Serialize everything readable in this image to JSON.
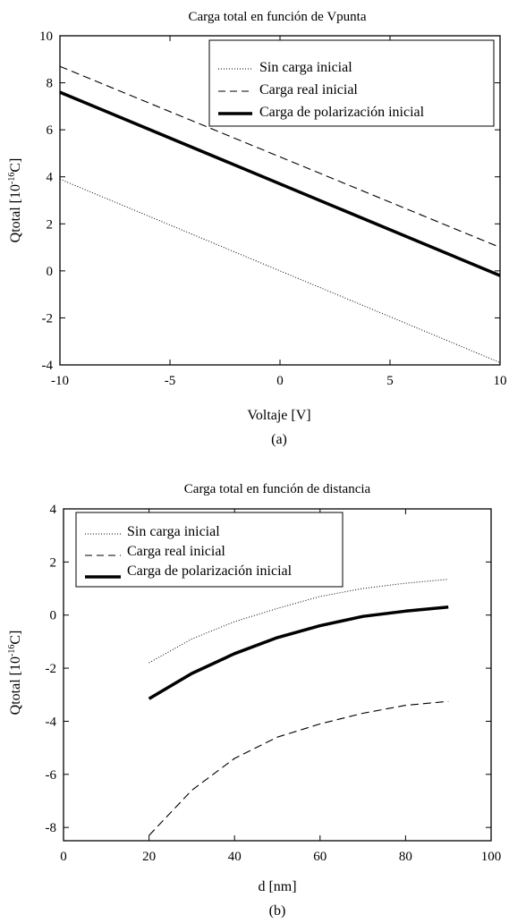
{
  "chart_data": [
    {
      "type": "line",
      "panel_label": "(a)",
      "title": "Carga total en función de Vpunta",
      "xlabel": "Voltaje [V]",
      "ylabel": "Qtotal [10^-16 C]",
      "xlim": [
        -10,
        10
      ],
      "ylim": [
        -4,
        10
      ],
      "xticks": [
        -10,
        -5,
        0,
        5,
        10
      ],
      "yticks": [
        -4,
        -2,
        0,
        2,
        4,
        6,
        8,
        10
      ],
      "grid": false,
      "legend_position": "top-right",
      "series": [
        {
          "name": "Sin carga inicial",
          "style": "dotted",
          "x": [
            -10,
            10
          ],
          "y": [
            3.9,
            -3.9
          ]
        },
        {
          "name": "Carga real inicial",
          "style": "dashed",
          "x": [
            -10,
            10
          ],
          "y": [
            8.7,
            1.0
          ]
        },
        {
          "name": "Carga de polarización inicial",
          "style": "thick",
          "x": [
            -10,
            10
          ],
          "y": [
            7.6,
            -0.2
          ]
        }
      ]
    },
    {
      "type": "line",
      "panel_label": "(b)",
      "title": "Carga total en función de distancia",
      "xlabel": "d [nm]",
      "ylabel": "Qtotal [10^-16 C]",
      "xlim": [
        0,
        100
      ],
      "ylim": [
        -8.5,
        4
      ],
      "xticks": [
        0,
        20,
        40,
        60,
        80,
        100
      ],
      "yticks": [
        -8,
        -6,
        -4,
        -2,
        0,
        2,
        4
      ],
      "grid": false,
      "legend_position": "top-left",
      "series": [
        {
          "name": "Sin carga inicial",
          "style": "dotted",
          "x": [
            20,
            30,
            40,
            50,
            60,
            70,
            80,
            90
          ],
          "y": [
            -1.8,
            -0.9,
            -0.25,
            0.25,
            0.7,
            1.0,
            1.2,
            1.35
          ]
        },
        {
          "name": "Carga real inicial",
          "style": "dashed",
          "x": [
            20,
            30,
            40,
            50,
            60,
            70,
            80,
            90
          ],
          "y": [
            -8.3,
            -6.6,
            -5.4,
            -4.6,
            -4.1,
            -3.7,
            -3.4,
            -3.25
          ]
        },
        {
          "name": "Carga de polarización inicial",
          "style": "thick",
          "x": [
            20,
            30,
            40,
            50,
            60,
            70,
            80,
            90
          ],
          "y": [
            -3.15,
            -2.2,
            -1.45,
            -0.85,
            -0.4,
            -0.05,
            0.15,
            0.3
          ]
        }
      ]
    }
  ]
}
